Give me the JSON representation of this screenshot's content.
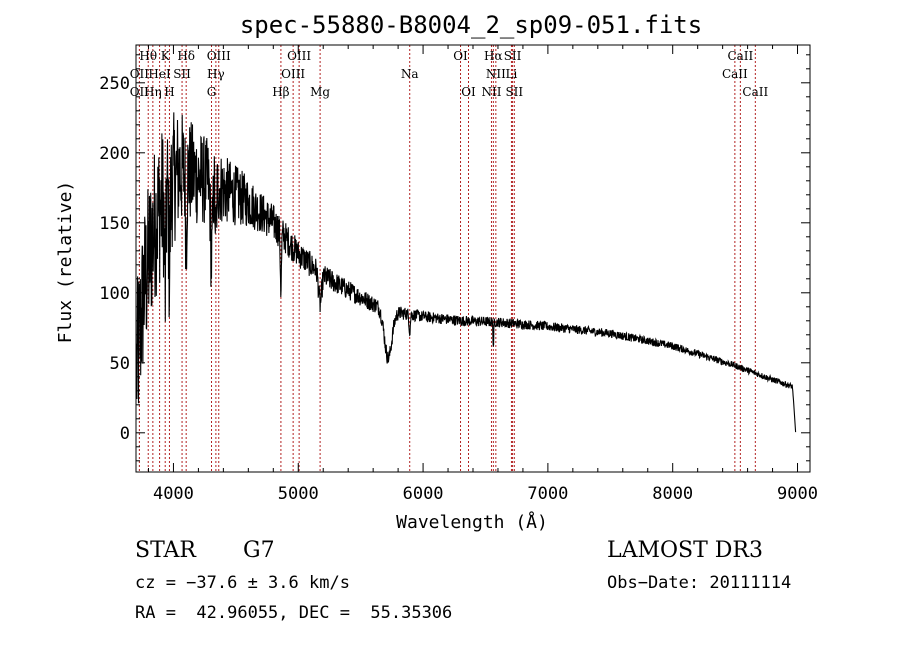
{
  "chart_data": {
    "type": "line",
    "title": "spec-55880-B8004_2_sp09-051.fits",
    "xlabel": "Wavelength (Å)",
    "ylabel": "Flux (relative)",
    "xlim": [
      3700,
      9100
    ],
    "ylim": [
      -28,
      277
    ],
    "xticks": [
      4000,
      5000,
      6000,
      7000,
      8000,
      9000
    ],
    "yticks": [
      0,
      50,
      100,
      150,
      200,
      250
    ],
    "continuum": [
      [
        3700,
        40
      ],
      [
        3760,
        100
      ],
      [
        3850,
        150
      ],
      [
        3950,
        175
      ],
      [
        4050,
        188
      ],
      [
        4150,
        185
      ],
      [
        4300,
        178
      ],
      [
        4450,
        172
      ],
      [
        4600,
        165
      ],
      [
        4800,
        150
      ],
      [
        5000,
        128
      ],
      [
        5200,
        112
      ],
      [
        5400,
        102
      ],
      [
        5600,
        92
      ],
      [
        5800,
        86
      ],
      [
        6000,
        83
      ],
      [
        6300,
        80
      ],
      [
        6600,
        79
      ],
      [
        7000,
        76
      ],
      [
        7500,
        71
      ],
      [
        8000,
        62
      ],
      [
        8500,
        48
      ],
      [
        8800,
        38
      ],
      [
        8960,
        33
      ]
    ],
    "absorption_features": [
      {
        "center": 3934,
        "depth": 70,
        "width": 6
      },
      {
        "center": 3968,
        "depth": 60,
        "width": 6
      },
      {
        "center": 4102,
        "depth": 45,
        "width": 5
      },
      {
        "center": 4305,
        "depth": 55,
        "width": 8
      },
      {
        "center": 4340,
        "depth": 40,
        "width": 5
      },
      {
        "center": 4861,
        "depth": 40,
        "width": 5
      },
      {
        "center": 5175,
        "depth": 22,
        "width": 12
      },
      {
        "center": 5720,
        "depth": 35,
        "width": 30
      },
      {
        "center": 5893,
        "depth": 12,
        "width": 5
      },
      {
        "center": 6563,
        "depth": 18,
        "width": 3
      }
    ],
    "noise_levels": [
      [
        3700,
        60
      ],
      [
        3900,
        55
      ],
      [
        4100,
        40
      ],
      [
        4400,
        25
      ],
      [
        4700,
        15
      ],
      [
        5000,
        10
      ],
      [
        5400,
        7
      ],
      [
        6000,
        4
      ],
      [
        9000,
        2
      ]
    ],
    "spectral_lines": [
      {
        "label": "Hθ",
        "wavelength": 3798,
        "row": 0
      },
      {
        "label": "OII",
        "wavelength": 3727,
        "row": 1
      },
      {
        "label": "OII",
        "wavelength": 3727,
        "row": 2
      },
      {
        "label": "HeI",
        "wavelength": 3889,
        "row": 1
      },
      {
        "label": "Hη",
        "wavelength": 3835,
        "row": 2
      },
      {
        "label": "K",
        "wavelength": 3934,
        "row": 0
      },
      {
        "label": "SII",
        "wavelength": 4069,
        "row": 1
      },
      {
        "label": "H",
        "wavelength": 3968,
        "row": 2
      },
      {
        "label": "Hδ",
        "wavelength": 4102,
        "row": 0
      },
      {
        "label": "OIII",
        "wavelength": 4363,
        "row": 0
      },
      {
        "label": "Hγ",
        "wavelength": 4340,
        "row": 1
      },
      {
        "label": "G",
        "wavelength": 4305,
        "row": 2
      },
      {
        "label": "Hβ",
        "wavelength": 4861,
        "row": 2
      },
      {
        "label": "OIII",
        "wavelength": 5007,
        "row": 0
      },
      {
        "label": "OIII",
        "wavelength": 4959,
        "row": 1
      },
      {
        "label": "Mg",
        "wavelength": 5175,
        "row": 2
      },
      {
        "label": "Na",
        "wavelength": 5893,
        "row": 1
      },
      {
        "label": "OI",
        "wavelength": 6300,
        "row": 0
      },
      {
        "label": "OI",
        "wavelength": 6364,
        "row": 2
      },
      {
        "label": "Hα",
        "wavelength": 6563,
        "row": 0
      },
      {
        "label": "NII",
        "wavelength": 6583,
        "row": 1
      },
      {
        "label": "NII",
        "wavelength": 6548,
        "row": 2
      },
      {
        "label": "SII",
        "wavelength": 6717,
        "row": 0
      },
      {
        "label": "Li",
        "wavelength": 6708,
        "row": 1
      },
      {
        "label": "SII",
        "wavelength": 6731,
        "row": 2
      },
      {
        "label": "CaII",
        "wavelength": 8542,
        "row": 0
      },
      {
        "label": "CaII",
        "wavelength": 8498,
        "row": 1
      },
      {
        "label": "CaII",
        "wavelength": 8662,
        "row": 2
      }
    ]
  },
  "info": {
    "object_class": "STAR",
    "subclass": "G7",
    "survey": "LAMOST DR3",
    "cz": "cz = −37.6 ± 3.6 km/s",
    "obs_date": "Obs−Date: 20111114",
    "coords": "RA =  42.96055, DEC =  55.35306"
  }
}
